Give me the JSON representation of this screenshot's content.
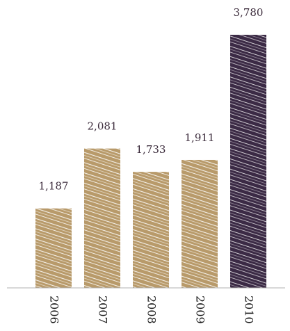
{
  "chart_data": {
    "type": "bar",
    "title": "",
    "xlabel": "",
    "ylabel": "",
    "categories": [
      "2006",
      "2007",
      "2008",
      "2009",
      "2010"
    ],
    "values": [
      1187,
      2081,
      1733,
      1911,
      3780
    ],
    "value_labels": [
      "1,187",
      "2,081",
      "1,733",
      "1,911",
      "3,780"
    ],
    "ylim": [
      0,
      3780
    ],
    "grid": false,
    "legend": "none",
    "colors": {
      "default_bar": "#b89a6a",
      "highlight_bar": "#3b2a45",
      "axis": "#b0b0b0"
    },
    "highlight_index": 4,
    "bar_texture": "hand-drawn hatching"
  }
}
